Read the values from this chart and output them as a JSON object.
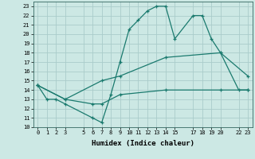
{
  "xlabel": "Humidex (Indice chaleur)",
  "bg_color": "#cce8e4",
  "grid_color": "#aaccca",
  "line_color": "#1a7a6e",
  "xlim": [
    -0.5,
    23.5
  ],
  "ylim": [
    10,
    23.5
  ],
  "xticks": [
    0,
    1,
    2,
    3,
    5,
    6,
    7,
    8,
    9,
    10,
    11,
    12,
    13,
    14,
    15,
    17,
    18,
    19,
    20,
    22,
    23
  ],
  "yticks": [
    10,
    11,
    12,
    13,
    14,
    15,
    16,
    17,
    18,
    19,
    20,
    21,
    22,
    23
  ],
  "line1_x": [
    0,
    1,
    2,
    3,
    6,
    7,
    8,
    9,
    10,
    11,
    12,
    13,
    14,
    15,
    17,
    18,
    19,
    20,
    22,
    23
  ],
  "line1_y": [
    14.5,
    13,
    13,
    12.5,
    11,
    10.5,
    13.5,
    17,
    20.5,
    21.5,
    22.5,
    23,
    23,
    19.5,
    22,
    22,
    19.5,
    18,
    14,
    14
  ],
  "line2_x": [
    0,
    3,
    7,
    9,
    14,
    20,
    23
  ],
  "line2_y": [
    14.5,
    13,
    15,
    15.5,
    17.5,
    18,
    15.5
  ],
  "line3_x": [
    0,
    3,
    6,
    7,
    9,
    14,
    20,
    23
  ],
  "line3_y": [
    14.5,
    13,
    12.5,
    12.5,
    13.5,
    14,
    14,
    14
  ]
}
